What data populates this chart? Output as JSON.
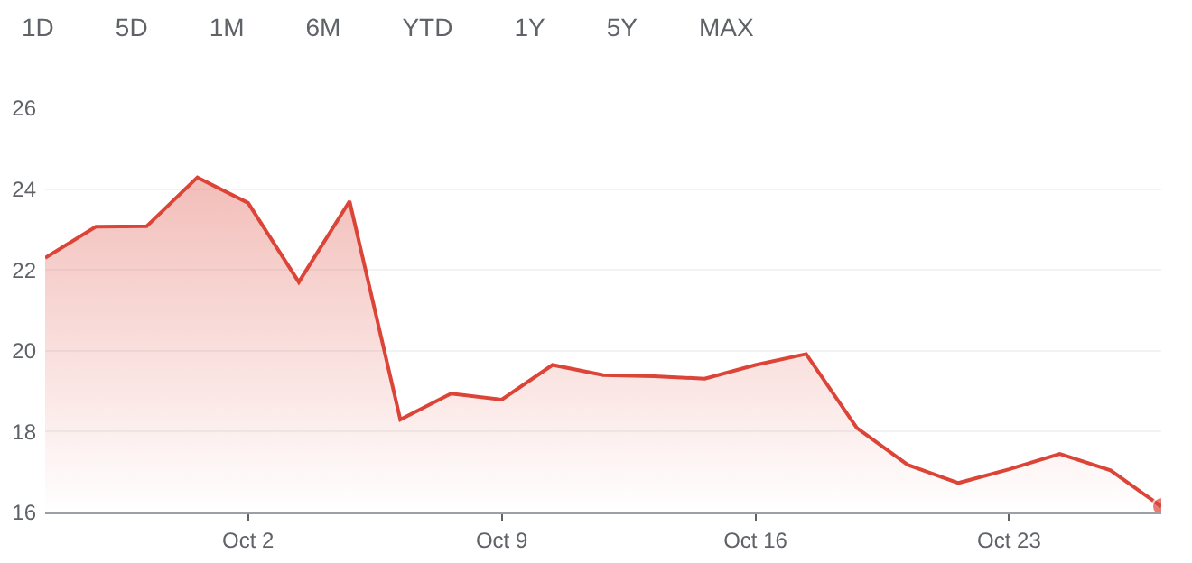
{
  "chart_data": {
    "type": "area",
    "annotations": [
      "1D",
      "5D",
      "1M",
      "6M",
      "YTD",
      "1Y",
      "5Y",
      "MAX"
    ],
    "categories": [
      null,
      null,
      null,
      null,
      "Oct 2",
      null,
      null,
      null,
      null,
      "Oct 9",
      null,
      null,
      null,
      null,
      "Oct 16",
      null,
      null,
      null,
      null,
      "Oct 23",
      null,
      null,
      null
    ],
    "series": [
      {
        "color": "#db4437",
        "values": [
          22.3,
          23.07,
          23.08,
          24.29,
          23.66,
          21.7,
          23.7,
          18.3,
          18.94,
          18.79,
          19.65,
          19.4,
          19.37,
          19.31,
          19.65,
          19.92,
          18.09,
          17.18,
          16.73,
          17.07,
          17.45,
          17.04,
          16.15
        ]
      }
    ],
    "ylim": [
      16,
      26
    ],
    "yticks": [
      16,
      18,
      20,
      22,
      24,
      26
    ],
    "grid": "y",
    "legend": false
  }
}
